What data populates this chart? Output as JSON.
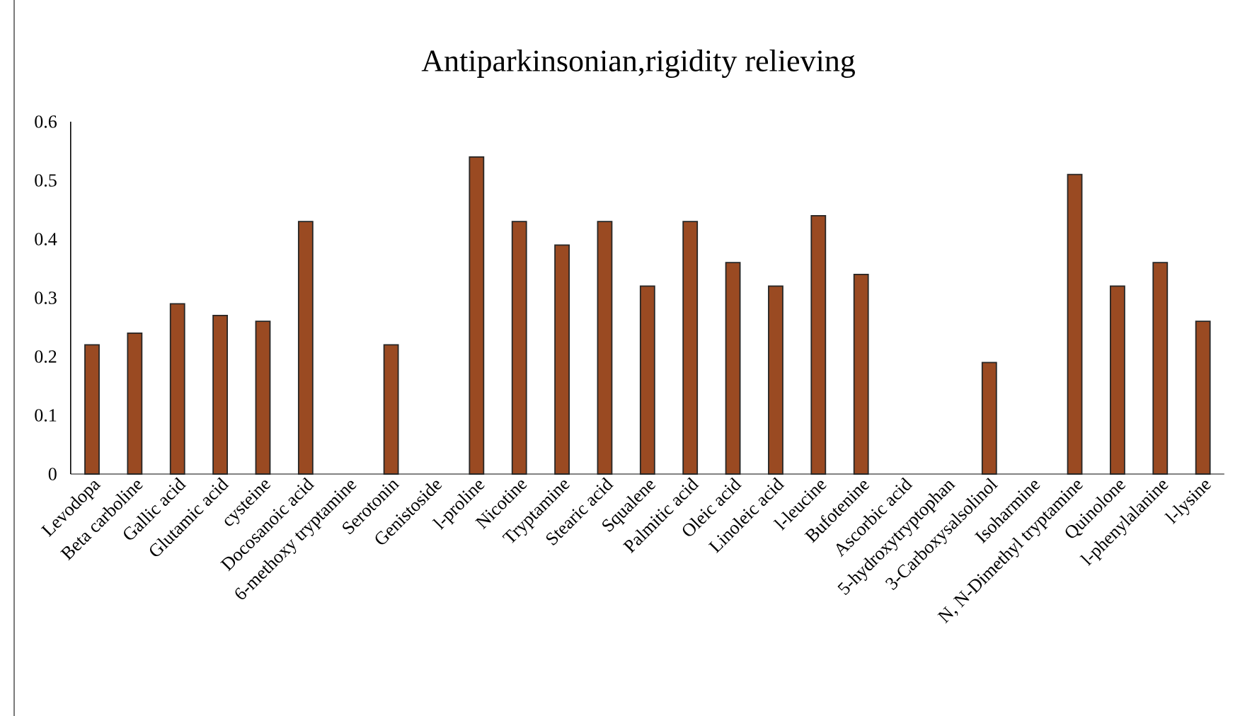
{
  "chart_data": {
    "type": "bar",
    "title": "Antiparkinsonian,rigidity relieving",
    "categories": [
      "Levodopa",
      "Beta carboline",
      "Gallic acid",
      "Glutamic acid",
      "cysteine",
      "Docosanoic acid",
      "6-methoxy tryptamine",
      "Serotonin",
      "Genistoside",
      "l-proline",
      "Nicotine",
      "Tryptamine",
      "Stearic acid",
      "Squalene",
      "Palmitic acid",
      "Oleic acid",
      "Linoleic acid",
      "l-leucine",
      "Bufotenine",
      "Ascorbic acid",
      "5-hydroxytryptophan",
      "3-Carboxysalsolinol",
      "Isoharmine",
      "N, N-Dimethyl tryptamine",
      "Quinolone",
      "l-phenylalanine",
      "l-lysine"
    ],
    "values": [
      0.22,
      0.24,
      0.29,
      0.27,
      0.26,
      0.43,
      null,
      0.22,
      null,
      0.54,
      0.43,
      0.39,
      0.43,
      0.32,
      0.43,
      0.36,
      0.32,
      0.44,
      0.34,
      null,
      null,
      0.19,
      null,
      0.51,
      0.32,
      0.36,
      0.26
    ],
    "color": "#9a4a22",
    "ylim": [
      0,
      0.6
    ],
    "yticks": [
      0,
      0.1,
      0.2,
      0.3,
      0.4,
      0.5,
      0.6
    ],
    "grid": false
  }
}
